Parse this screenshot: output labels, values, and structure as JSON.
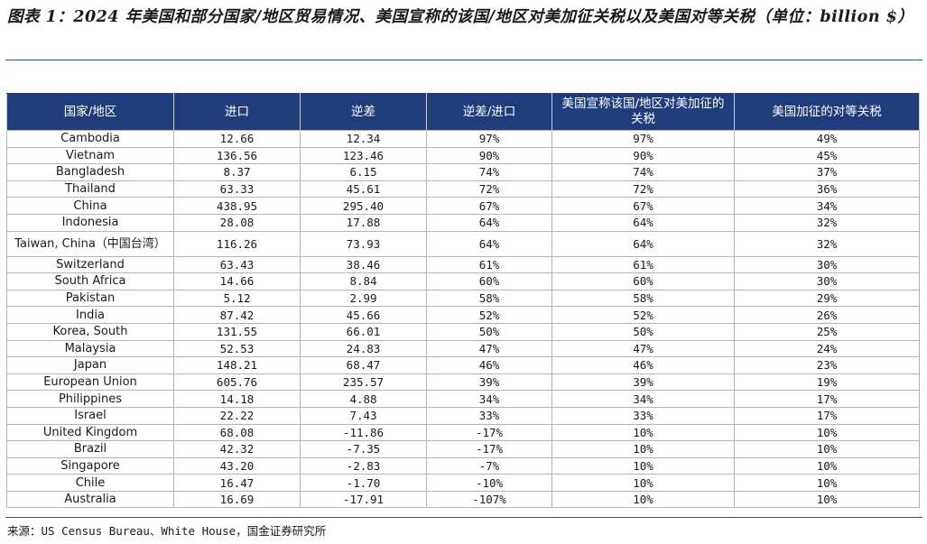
{
  "title": "图表 1：2024 年美国和部分国家/地区贸易情况、美国宣称的该国/地区对美加征关税以及美国对等关税（单位：billion $）",
  "table": {
    "headers": [
      "国家/地区",
      "进口",
      "逆差",
      "逆差/进口",
      "美国宣称该国/地区对美加征的关税",
      "美国加征的对等关税"
    ],
    "rows": [
      [
        "Cambodia",
        "12.66",
        "12.34",
        "97%",
        "97%",
        "49%"
      ],
      [
        "Vietnam",
        "136.56",
        "123.46",
        "90%",
        "90%",
        "45%"
      ],
      [
        "Bangladesh",
        "8.37",
        "6.15",
        "74%",
        "74%",
        "37%"
      ],
      [
        "Thailand",
        "63.33",
        "45.61",
        "72%",
        "72%",
        "36%"
      ],
      [
        "China",
        "438.95",
        "295.40",
        "67%",
        "67%",
        "34%"
      ],
      [
        "Indonesia",
        "28.08",
        "17.88",
        "64%",
        "64%",
        "32%"
      ],
      [
        "Taiwan, China（中国台湾）",
        "116.26",
        "73.93",
        "64%",
        "64%",
        "32%"
      ],
      [
        "Switzerland",
        "63.43",
        "38.46",
        "61%",
        "61%",
        "30%"
      ],
      [
        "South Africa",
        "14.66",
        "8.84",
        "60%",
        "60%",
        "30%"
      ],
      [
        "Pakistan",
        "5.12",
        "2.99",
        "58%",
        "58%",
        "29%"
      ],
      [
        "India",
        "87.42",
        "45.66",
        "52%",
        "52%",
        "26%"
      ],
      [
        "Korea, South",
        "131.55",
        "66.01",
        "50%",
        "50%",
        "25%"
      ],
      [
        "Malaysia",
        "52.53",
        "24.83",
        "47%",
        "47%",
        "24%"
      ],
      [
        "Japan",
        "148.21",
        "68.47",
        "46%",
        "46%",
        "23%"
      ],
      [
        "European Union",
        "605.76",
        "235.57",
        "39%",
        "39%",
        "19%"
      ],
      [
        "Philippines",
        "14.18",
        "4.88",
        "34%",
        "34%",
        "17%"
      ],
      [
        "Israel",
        "22.22",
        "7.43",
        "33%",
        "33%",
        "17%"
      ],
      [
        "United Kingdom",
        "68.08",
        "-11.86",
        "-17%",
        "10%",
        "10%"
      ],
      [
        "Brazil",
        "42.32",
        "-7.35",
        "-17%",
        "10%",
        "10%"
      ],
      [
        "Singapore",
        "43.20",
        "-2.83",
        "-7%",
        "10%",
        "10%"
      ],
      [
        "Chile",
        "16.47",
        "-1.70",
        "-10%",
        "10%",
        "10%"
      ],
      [
        "Australia",
        "16.69",
        "-17.91",
        "-107%",
        "10%",
        "10%"
      ]
    ]
  },
  "source": "来源：US Census Bureau、White House，国金证券研究所",
  "colors": {
    "header_bg": "#1f3d7a",
    "header_text": "#ffffff",
    "rule": "#2a5a78",
    "grid": "#b5b5b5"
  }
}
